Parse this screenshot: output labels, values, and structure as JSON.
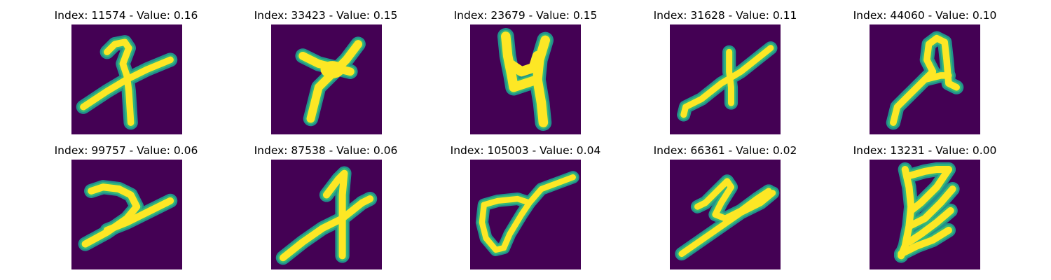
{
  "colors": {
    "background": "#440154",
    "stroke_core": "#fde725",
    "stroke_edge": "#35b779",
    "stroke_halo": "#21918c"
  },
  "panels": [
    {
      "title": "Index: 11574 - Value: 0.16",
      "glyph": "x-with-hooked-top"
    },
    {
      "title": "Index: 33423 - Value: 0.15",
      "glyph": "x-star"
    },
    {
      "title": "Index: 23679 - Value: 0.15",
      "glyph": "four-like"
    },
    {
      "title": "Index: 31628 - Value: 0.11",
      "glyph": "x-slanted"
    },
    {
      "title": "Index: 44060 - Value: 0.10",
      "glyph": "loop-with-tail"
    },
    {
      "title": "Index: 99757 - Value: 0.06",
      "glyph": "seven-like"
    },
    {
      "title": "Index: 87538 - Value: 0.06",
      "glyph": "one-x"
    },
    {
      "title": "Index: 105003 - Value: 0.04",
      "glyph": "loop-lasso"
    },
    {
      "title": "Index: 66361 - Value: 0.02",
      "glyph": "two-like"
    },
    {
      "title": "Index: 13231 - Value: 0.00",
      "glyph": "zigzag"
    }
  ]
}
